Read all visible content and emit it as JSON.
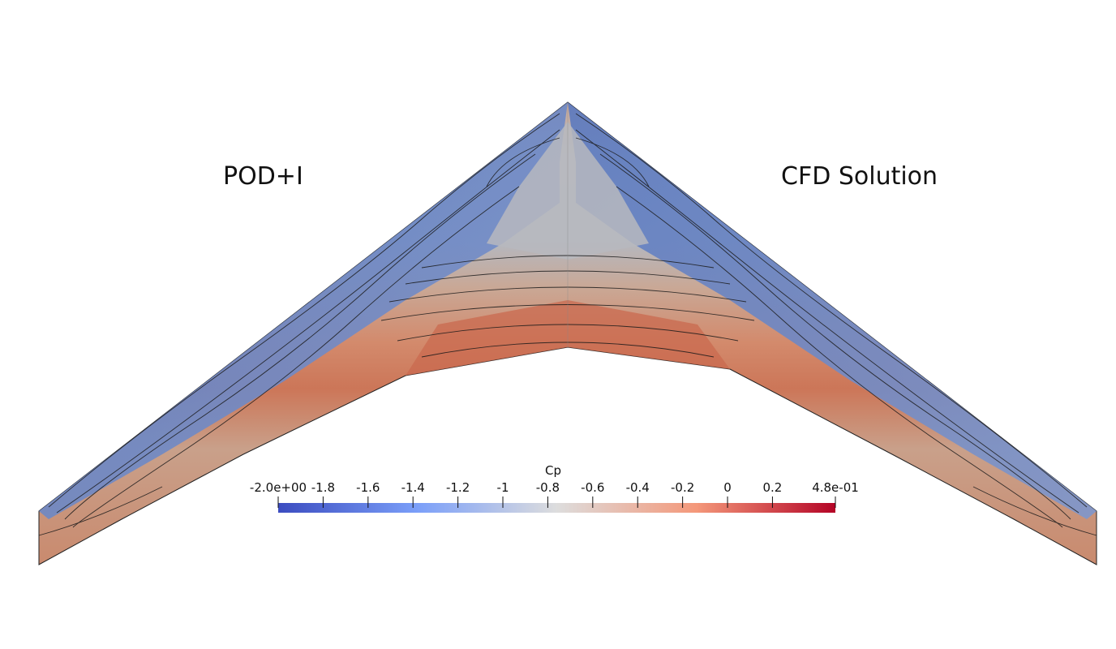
{
  "view": {
    "left_label": "POD+I",
    "right_label": "CFD Solution"
  },
  "colorbar": {
    "title": "Cp",
    "min": -2.0,
    "max": 0.48,
    "colormap": "coolwarm",
    "colors": {
      "low": "#3b4cc0",
      "mid": "#dddddd",
      "high": "#b40426"
    },
    "ticks": [
      {
        "value": -2.0,
        "label": "-2.0e+00"
      },
      {
        "value": -1.8,
        "label": "-1.8"
      },
      {
        "value": -1.6,
        "label": "-1.6"
      },
      {
        "value": -1.4,
        "label": "-1.4"
      },
      {
        "value": -1.2,
        "label": "-1.2"
      },
      {
        "value": -1.0,
        "label": "-1"
      },
      {
        "value": -0.8,
        "label": "-0.8"
      },
      {
        "value": -0.6,
        "label": "-0.6"
      },
      {
        "value": -0.4,
        "label": "-0.4"
      },
      {
        "value": -0.2,
        "label": "-0.2"
      },
      {
        "value": 0.0,
        "label": "0"
      },
      {
        "value": 0.2,
        "label": "0.2"
      },
      {
        "value": 0.48,
        "label": "4.8e-01"
      }
    ]
  }
}
